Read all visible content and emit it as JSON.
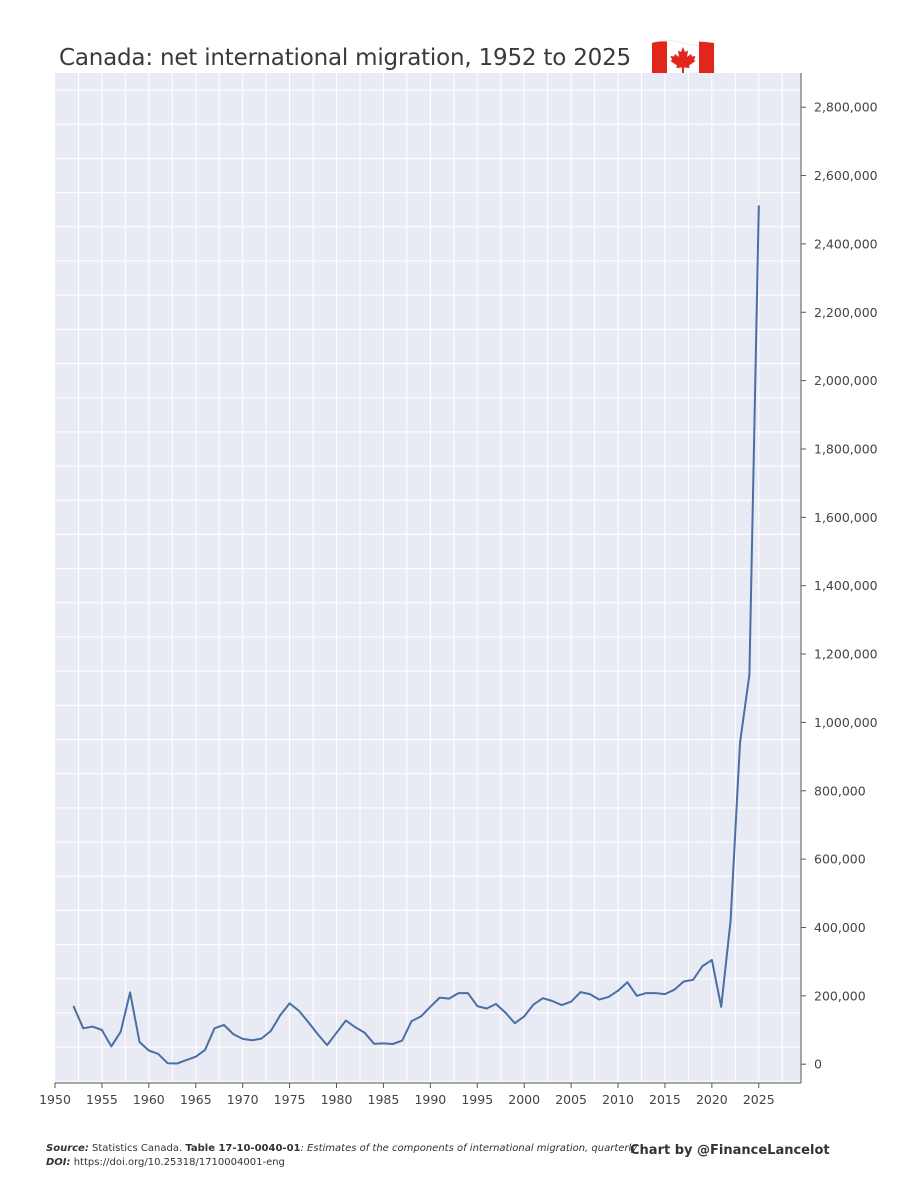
{
  "chart_data": {
    "type": "line",
    "title": "Canada: net international migration, 1952 to 2025",
    "xlabel": "",
    "ylabel": "",
    "xlim": [
      1950,
      2029.5
    ],
    "ylim": [
      -55000,
      2900000
    ],
    "x_ticks": [
      1950,
      1955,
      1960,
      1965,
      1970,
      1975,
      1980,
      1985,
      1990,
      1995,
      2000,
      2005,
      2010,
      2015,
      2020,
      2025
    ],
    "x_tick_labels": [
      "1950",
      "1955",
      "1960",
      "1965",
      "1970",
      "1975",
      "1980",
      "1985",
      "1990",
      "1995",
      "2000",
      "2005",
      "2010",
      "2015",
      "2020",
      "2025"
    ],
    "y_ticks": [
      0,
      200000,
      400000,
      600000,
      800000,
      1000000,
      1200000,
      1400000,
      1600000,
      1800000,
      2000000,
      2200000,
      2400000,
      2600000,
      2800000
    ],
    "y_tick_labels": [
      "0",
      "200,000",
      "400,000",
      "600,000",
      "800,000",
      "1,000,000",
      "1,200,000",
      "1,400,000",
      "1,600,000",
      "1,800,000",
      "2,000,000",
      "2,200,000",
      "2,400,000",
      "2,600,000",
      "2,800,000"
    ],
    "grid": true,
    "y_axis_position": "right",
    "line_color": "#4a6fa5",
    "plot_background": "#e9ebf4",
    "series": [
      {
        "x": [
          1952,
          1953,
          1954,
          1955,
          1956,
          1957,
          1958,
          1959,
          1960,
          1961,
          1962,
          1963,
          1964,
          1965,
          1966,
          1967,
          1968,
          1969,
          1970,
          1971,
          1972,
          1973,
          1974,
          1975,
          1976,
          1977,
          1978,
          1979,
          1980,
          1981,
          1982,
          1983,
          1984,
          1985,
          1986,
          1987,
          1988,
          1989,
          1990,
          1991,
          1992,
          1993,
          1994,
          1995,
          1996,
          1997,
          1998,
          1999,
          2000,
          2001,
          2002,
          2003,
          2004,
          2005,
          2006,
          2007,
          2008,
          2009,
          2010,
          2011,
          2012,
          2013,
          2014,
          2015,
          2016,
          2017,
          2018,
          2019,
          2020,
          2021,
          2022,
          2023,
          2024,
          2025
        ],
        "values": [
          168000,
          105000,
          110000,
          100000,
          52000,
          95000,
          210000,
          65000,
          40000,
          30000,
          3000,
          2000,
          12000,
          22000,
          42000,
          105000,
          115000,
          88000,
          74000,
          70000,
          75000,
          97000,
          143000,
          178000,
          156000,
          123000,
          88000,
          56000,
          92000,
          128000,
          108000,
          92000,
          60000,
          61000,
          59000,
          69000,
          126000,
          140000,
          168000,
          195000,
          192000,
          208000,
          208000,
          170000,
          163000,
          176000,
          151000,
          120000,
          140000,
          175000,
          193000,
          185000,
          173000,
          183000,
          211000,
          205000,
          189000,
          197000,
          215000,
          240000,
          200000,
          208000,
          208000,
          205000,
          218000,
          242000,
          247000,
          287000,
          305000,
          168000,
          420000,
          940000,
          1140000,
          2510000
        ]
      }
    ]
  },
  "footer": {
    "source_label": "Source:",
    "source_text": " Statistics Canada. ",
    "table_id": "Table 17-10-0040-01",
    "table_desc": ": Estimates of the components of international migration, quarterly",
    "doi_label": "DOI:",
    "doi_text": " https://doi.org/10.25318/1710004001-eng"
  },
  "credit": "Chart by @FinanceLancelot",
  "flag_icon": "canada-flag-icon"
}
